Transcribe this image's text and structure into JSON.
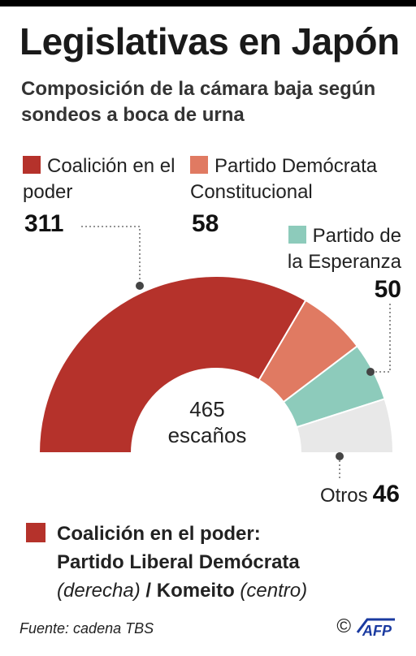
{
  "title": "Legislativas en Japón",
  "subtitle": "Composición de la cámara baja según sondeos a boca de urna",
  "chart_data": {
    "type": "pie",
    "variant": "half-donut (parliament arc)",
    "categories": [
      "Coalición en el poder",
      "Partido Demócrata Constitucional",
      "Partido de la Esperanza",
      "Otros"
    ],
    "values": [
      311,
      58,
      50,
      46
    ],
    "colors": [
      "#b5322b",
      "#e07a62",
      "#8dcbbb",
      "#e8e8e8"
    ],
    "total": 465,
    "total_label": "escaños",
    "legend_placement": "around the arc"
  },
  "legend": [
    {
      "label": "Coalición en el poder",
      "value": "311",
      "color": "#b5322b"
    },
    {
      "label": "Partido Demócrata Constitucional",
      "value": "58",
      "color": "#e07a62"
    },
    {
      "label": "Partido de la Esperanza",
      "value": "50",
      "color": "#8dcbbb"
    },
    {
      "label": "Otros",
      "value": "46"
    }
  ],
  "center": {
    "total": "465",
    "label": "escaños"
  },
  "note": {
    "heading": "Coalición en el poder:",
    "party_1": "Partido Liberal Demócrata",
    "orientation_1": "(derecha)",
    "separator": "/",
    "party_2": "Komeito",
    "orientation_2": "(centro)"
  },
  "source": "Fuente: cadena TBS",
  "logo": {
    "copyright": "©",
    "name": "AFP",
    "color": "#1a3aa0"
  }
}
